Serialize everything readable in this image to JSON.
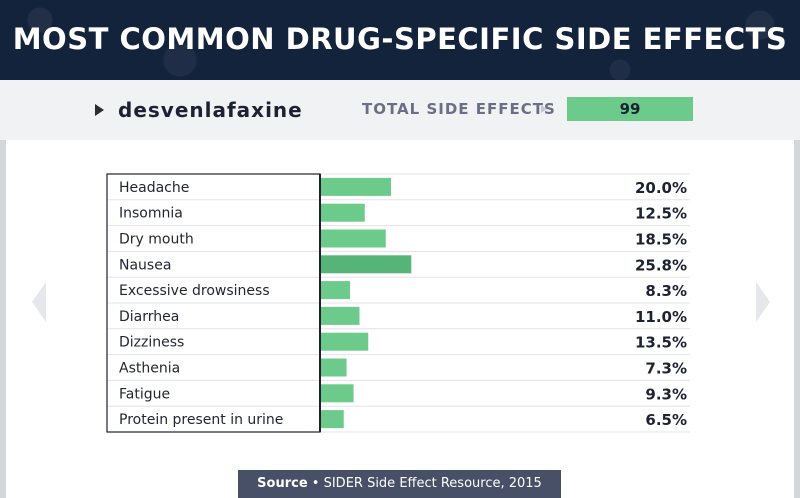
{
  "header": {
    "title": "MOST COMMON DRUG-SPECIFIC SIDE EFFECTS"
  },
  "drug": {
    "name": "desvenlafaxine"
  },
  "total": {
    "label": "TOTAL SIDE EFFECTS",
    "value": "99"
  },
  "source": {
    "label": "Source",
    "separator": "•",
    "text": "SIDER Side Effect Resource, 2015"
  },
  "colors": {
    "header_bg": "#13233c",
    "bar": "#6ccb8b",
    "bar_dark": "#57b478",
    "text": "#1d2233"
  },
  "chart_data": {
    "type": "bar",
    "orientation": "horizontal",
    "title": "",
    "categories": [
      "Headache",
      "Insomnia",
      "Dry mouth",
      "Nausea",
      "Excessive drowsiness",
      "Diarrhea",
      "Dizziness",
      "Asthenia",
      "Fatigue",
      "Protein present in urine"
    ],
    "values": [
      20.0,
      12.5,
      18.5,
      25.8,
      8.3,
      11.0,
      13.5,
      7.3,
      9.3,
      6.5
    ],
    "value_labels": [
      "20.0%",
      "12.5%",
      "18.5%",
      "25.8%",
      "8.3%",
      "11.0%",
      "13.5%",
      "7.3%",
      "9.3%",
      "6.5%"
    ],
    "xlabel": "",
    "ylabel": "",
    "xlim": [
      0,
      100
    ],
    "grid": false,
    "legend": "none"
  }
}
